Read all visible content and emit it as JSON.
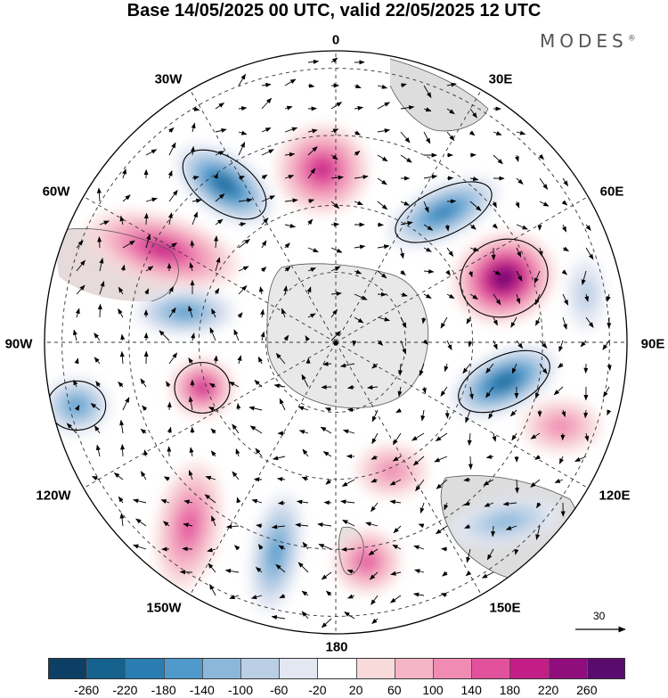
{
  "title": "Base 14/05/2025 00 UTC, valid 22/05/2025 12 UTC",
  "brand": "MODES",
  "brand_mark": "®",
  "longitude_labels": [
    "0",
    "30E",
    "60E",
    "90E",
    "120E",
    "150E",
    "180",
    "150W",
    "120W",
    "90W",
    "60W",
    "30W"
  ],
  "reference_vector_label": "30",
  "colorbar": {
    "colors": [
      "#0c3f63",
      "#15628f",
      "#2a7db3",
      "#4f9acb",
      "#8bb8da",
      "#bacfe6",
      "#e3e7f2",
      "#ffffff",
      "#f8dada",
      "#f5b5c6",
      "#f08bb3",
      "#e2529c",
      "#c21e86",
      "#8f0e7c",
      "#5a0c6e"
    ],
    "labels": [
      "-260",
      "-220",
      "-180",
      "-140",
      "-100",
      "-60",
      "-20",
      "20",
      "60",
      "100",
      "140",
      "180",
      "220",
      "260"
    ]
  },
  "field_anomalies": [
    {
      "name": "negative",
      "approx_value": -230
    },
    {
      "name": "positive",
      "approx_value": 180
    },
    {
      "name": "negative",
      "approx_value": -190
    },
    {
      "name": "positive",
      "approx_value": 260
    },
    {
      "name": "negative",
      "approx_value": -220
    },
    {
      "name": "positive",
      "approx_value": 180
    },
    {
      "name": "positive",
      "approx_value": 190
    },
    {
      "name": "negative",
      "approx_value": -150
    },
    {
      "name": "negative",
      "approx_value": -160
    },
    {
      "name": "positive",
      "approx_value": 110
    },
    {
      "name": "positive",
      "approx_value": 140
    },
    {
      "name": "negative",
      "approx_value": -140
    },
    {
      "name": "positive",
      "approx_value": 130
    },
    {
      "name": "negative",
      "approx_value": -110
    },
    {
      "name": "positive",
      "approx_value": 100
    },
    {
      "name": "negative",
      "approx_value": -80
    }
  ]
}
